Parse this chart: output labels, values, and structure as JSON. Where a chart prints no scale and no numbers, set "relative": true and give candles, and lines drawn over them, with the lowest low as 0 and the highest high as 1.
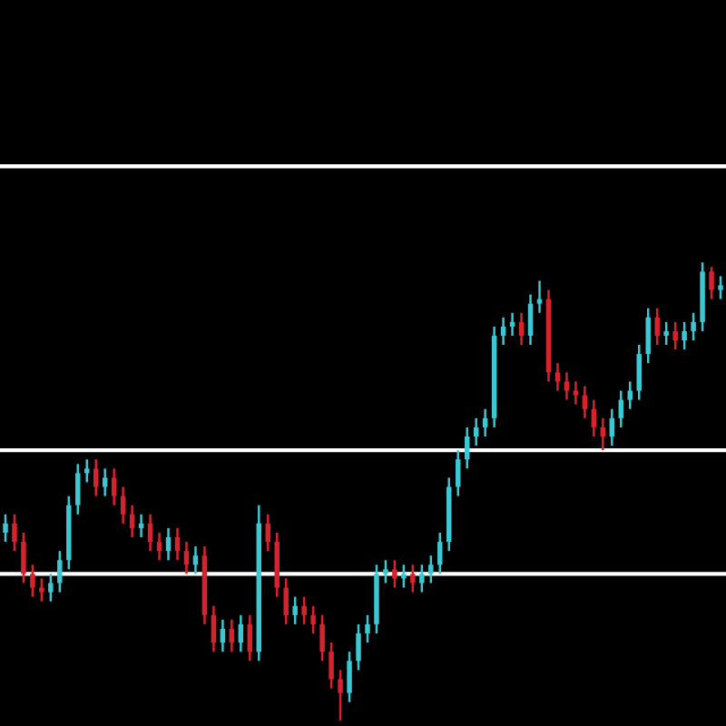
{
  "chart_data": {
    "type": "candlestick",
    "relative": true,
    "categories": [
      null,
      null,
      null,
      null,
      null,
      null,
      null,
      null,
      null,
      null,
      null,
      null,
      null,
      null,
      null,
      null,
      null,
      null,
      null,
      null,
      null,
      null,
      null,
      null,
      null,
      null,
      null,
      null,
      null,
      null,
      null,
      null,
      null,
      null,
      null,
      null,
      null,
      null,
      null,
      null,
      null,
      null,
      null,
      null,
      null,
      null,
      null,
      null,
      null,
      null,
      null,
      null,
      null,
      null,
      null,
      null,
      null,
      null,
      null,
      null,
      null,
      null,
      null,
      null,
      null,
      null,
      null,
      null,
      null,
      null,
      null,
      null,
      null,
      null,
      null,
      null,
      null,
      null,
      null,
      null
    ],
    "ohlc": [
      [
        0.41,
        0.45,
        0.39,
        0.43
      ],
      [
        0.43,
        0.45,
        0.37,
        0.39
      ],
      [
        0.39,
        0.41,
        0.3,
        0.32
      ],
      [
        0.32,
        0.34,
        0.27,
        0.29
      ],
      [
        0.29,
        0.31,
        0.26,
        0.28
      ],
      [
        0.28,
        0.32,
        0.26,
        0.3
      ],
      [
        0.3,
        0.37,
        0.28,
        0.35
      ],
      [
        0.35,
        0.49,
        0.33,
        0.47
      ],
      [
        0.47,
        0.56,
        0.45,
        0.54
      ],
      [
        0.54,
        0.57,
        0.52,
        0.55
      ],
      [
        0.55,
        0.57,
        0.49,
        0.51
      ],
      [
        0.51,
        0.55,
        0.49,
        0.53
      ],
      [
        0.53,
        0.55,
        0.47,
        0.49
      ],
      [
        0.49,
        0.51,
        0.43,
        0.45
      ],
      [
        0.45,
        0.47,
        0.4,
        0.42
      ],
      [
        0.42,
        0.45,
        0.4,
        0.43
      ],
      [
        0.43,
        0.45,
        0.37,
        0.39
      ],
      [
        0.39,
        0.41,
        0.35,
        0.37
      ],
      [
        0.37,
        0.42,
        0.35,
        0.4
      ],
      [
        0.4,
        0.42,
        0.35,
        0.37
      ],
      [
        0.37,
        0.39,
        0.32,
        0.34
      ],
      [
        0.34,
        0.38,
        0.32,
        0.36
      ],
      [
        0.36,
        0.38,
        0.21,
        0.23
      ],
      [
        0.23,
        0.25,
        0.15,
        0.17
      ],
      [
        0.17,
        0.22,
        0.15,
        0.2
      ],
      [
        0.2,
        0.22,
        0.15,
        0.17
      ],
      [
        0.17,
        0.23,
        0.15,
        0.21
      ],
      [
        0.21,
        0.23,
        0.13,
        0.15
      ],
      [
        0.15,
        0.47,
        0.13,
        0.43
      ],
      [
        0.43,
        0.45,
        0.37,
        0.39
      ],
      [
        0.39,
        0.41,
        0.27,
        0.29
      ],
      [
        0.29,
        0.31,
        0.21,
        0.23
      ],
      [
        0.23,
        0.27,
        0.21,
        0.25
      ],
      [
        0.25,
        0.27,
        0.21,
        0.23
      ],
      [
        0.23,
        0.25,
        0.19,
        0.21
      ],
      [
        0.21,
        0.23,
        0.13,
        0.15
      ],
      [
        0.15,
        0.17,
        0.07,
        0.09
      ],
      [
        0.09,
        0.11,
        0.0,
        0.06
      ],
      [
        0.06,
        0.15,
        0.04,
        0.13
      ],
      [
        0.13,
        0.21,
        0.11,
        0.19
      ],
      [
        0.19,
        0.23,
        0.17,
        0.21
      ],
      [
        0.21,
        0.34,
        0.19,
        0.32
      ],
      [
        0.32,
        0.35,
        0.3,
        0.33
      ],
      [
        0.33,
        0.35,
        0.29,
        0.31
      ],
      [
        0.31,
        0.34,
        0.29,
        0.32
      ],
      [
        0.32,
        0.34,
        0.28,
        0.3
      ],
      [
        0.3,
        0.34,
        0.28,
        0.32
      ],
      [
        0.32,
        0.36,
        0.3,
        0.34
      ],
      [
        0.34,
        0.41,
        0.32,
        0.39
      ],
      [
        0.39,
        0.53,
        0.37,
        0.51
      ],
      [
        0.51,
        0.59,
        0.49,
        0.57
      ],
      [
        0.57,
        0.64,
        0.55,
        0.62
      ],
      [
        0.62,
        0.66,
        0.6,
        0.64
      ],
      [
        0.64,
        0.68,
        0.62,
        0.66
      ],
      [
        0.66,
        0.86,
        0.64,
        0.84
      ],
      [
        0.84,
        0.88,
        0.82,
        0.86
      ],
      [
        0.86,
        0.89,
        0.84,
        0.87
      ],
      [
        0.87,
        0.89,
        0.82,
        0.84
      ],
      [
        0.84,
        0.93,
        0.82,
        0.91
      ],
      [
        0.91,
        0.96,
        0.89,
        0.92
      ],
      [
        0.92,
        0.94,
        0.74,
        0.76
      ],
      [
        0.76,
        0.78,
        0.72,
        0.74
      ],
      [
        0.74,
        0.76,
        0.7,
        0.72
      ],
      [
        0.72,
        0.74,
        0.69,
        0.71
      ],
      [
        0.71,
        0.73,
        0.66,
        0.68
      ],
      [
        0.68,
        0.7,
        0.62,
        0.64
      ],
      [
        0.64,
        0.66,
        0.59,
        0.62
      ],
      [
        0.62,
        0.68,
        0.6,
        0.66
      ],
      [
        0.66,
        0.72,
        0.64,
        0.7
      ],
      [
        0.7,
        0.74,
        0.68,
        0.72
      ],
      [
        0.72,
        0.82,
        0.7,
        0.8
      ],
      [
        0.8,
        0.9,
        0.78,
        0.88
      ],
      [
        0.88,
        0.9,
        0.82,
        0.84
      ],
      [
        0.84,
        0.87,
        0.82,
        0.85
      ],
      [
        0.85,
        0.87,
        0.81,
        0.83
      ],
      [
        0.83,
        0.87,
        0.81,
        0.85
      ],
      [
        0.85,
        0.89,
        0.83,
        0.87
      ],
      [
        0.87,
        1.0,
        0.85,
        0.98
      ],
      [
        0.98,
        0.99,
        0.92,
        0.94
      ],
      [
        0.94,
        0.97,
        0.92,
        0.95
      ]
    ],
    "colors": [
      "#3cc8d2",
      "#d8232e",
      "#d8232e",
      "#d8232e",
      "#d8232e",
      "#3cc8d2",
      "#3cc8d2",
      "#3cc8d2",
      "#3cc8d2",
      "#3cc8d2",
      "#d8232e",
      "#3cc8d2",
      "#d8232e",
      "#d8232e",
      "#d8232e",
      "#3cc8d2",
      "#d8232e",
      "#d8232e",
      "#3cc8d2",
      "#d8232e",
      "#d8232e",
      "#3cc8d2",
      "#d8232e",
      "#d8232e",
      "#3cc8d2",
      "#d8232e",
      "#3cc8d2",
      "#d8232e",
      "#3cc8d2",
      "#d8232e",
      "#d8232e",
      "#d8232e",
      "#3cc8d2",
      "#d8232e",
      "#d8232e",
      "#d8232e",
      "#d8232e",
      "#d8232e",
      "#3cc8d2",
      "#3cc8d2",
      "#3cc8d2",
      "#3cc8d2",
      "#3cc8d2",
      "#d8232e",
      "#3cc8d2",
      "#d8232e",
      "#3cc8d2",
      "#3cc8d2",
      "#3cc8d2",
      "#3cc8d2",
      "#3cc8d2",
      "#3cc8d2",
      "#3cc8d2",
      "#3cc8d2",
      "#3cc8d2",
      "#3cc8d2",
      "#3cc8d2",
      "#d8232e",
      "#3cc8d2",
      "#3cc8d2",
      "#d8232e",
      "#d8232e",
      "#d8232e",
      "#d8232e",
      "#d8232e",
      "#d8232e",
      "#d8232e",
      "#3cc8d2",
      "#3cc8d2",
      "#3cc8d2",
      "#3cc8d2",
      "#3cc8d2",
      "#d8232e",
      "#3cc8d2",
      "#d8232e",
      "#3cc8d2",
      "#3cc8d2",
      "#3cc8d2",
      "#d8232e",
      "#3cc8d2"
    ],
    "ref_lines": [
      {
        "axis": "y",
        "value": 1.21,
        "color": "#ffffff"
      },
      {
        "axis": "y",
        "value": 0.59,
        "color": "#ffffff"
      },
      {
        "axis": "y",
        "value": 0.32,
        "color": "#ffffff"
      }
    ],
    "legend": false
  }
}
